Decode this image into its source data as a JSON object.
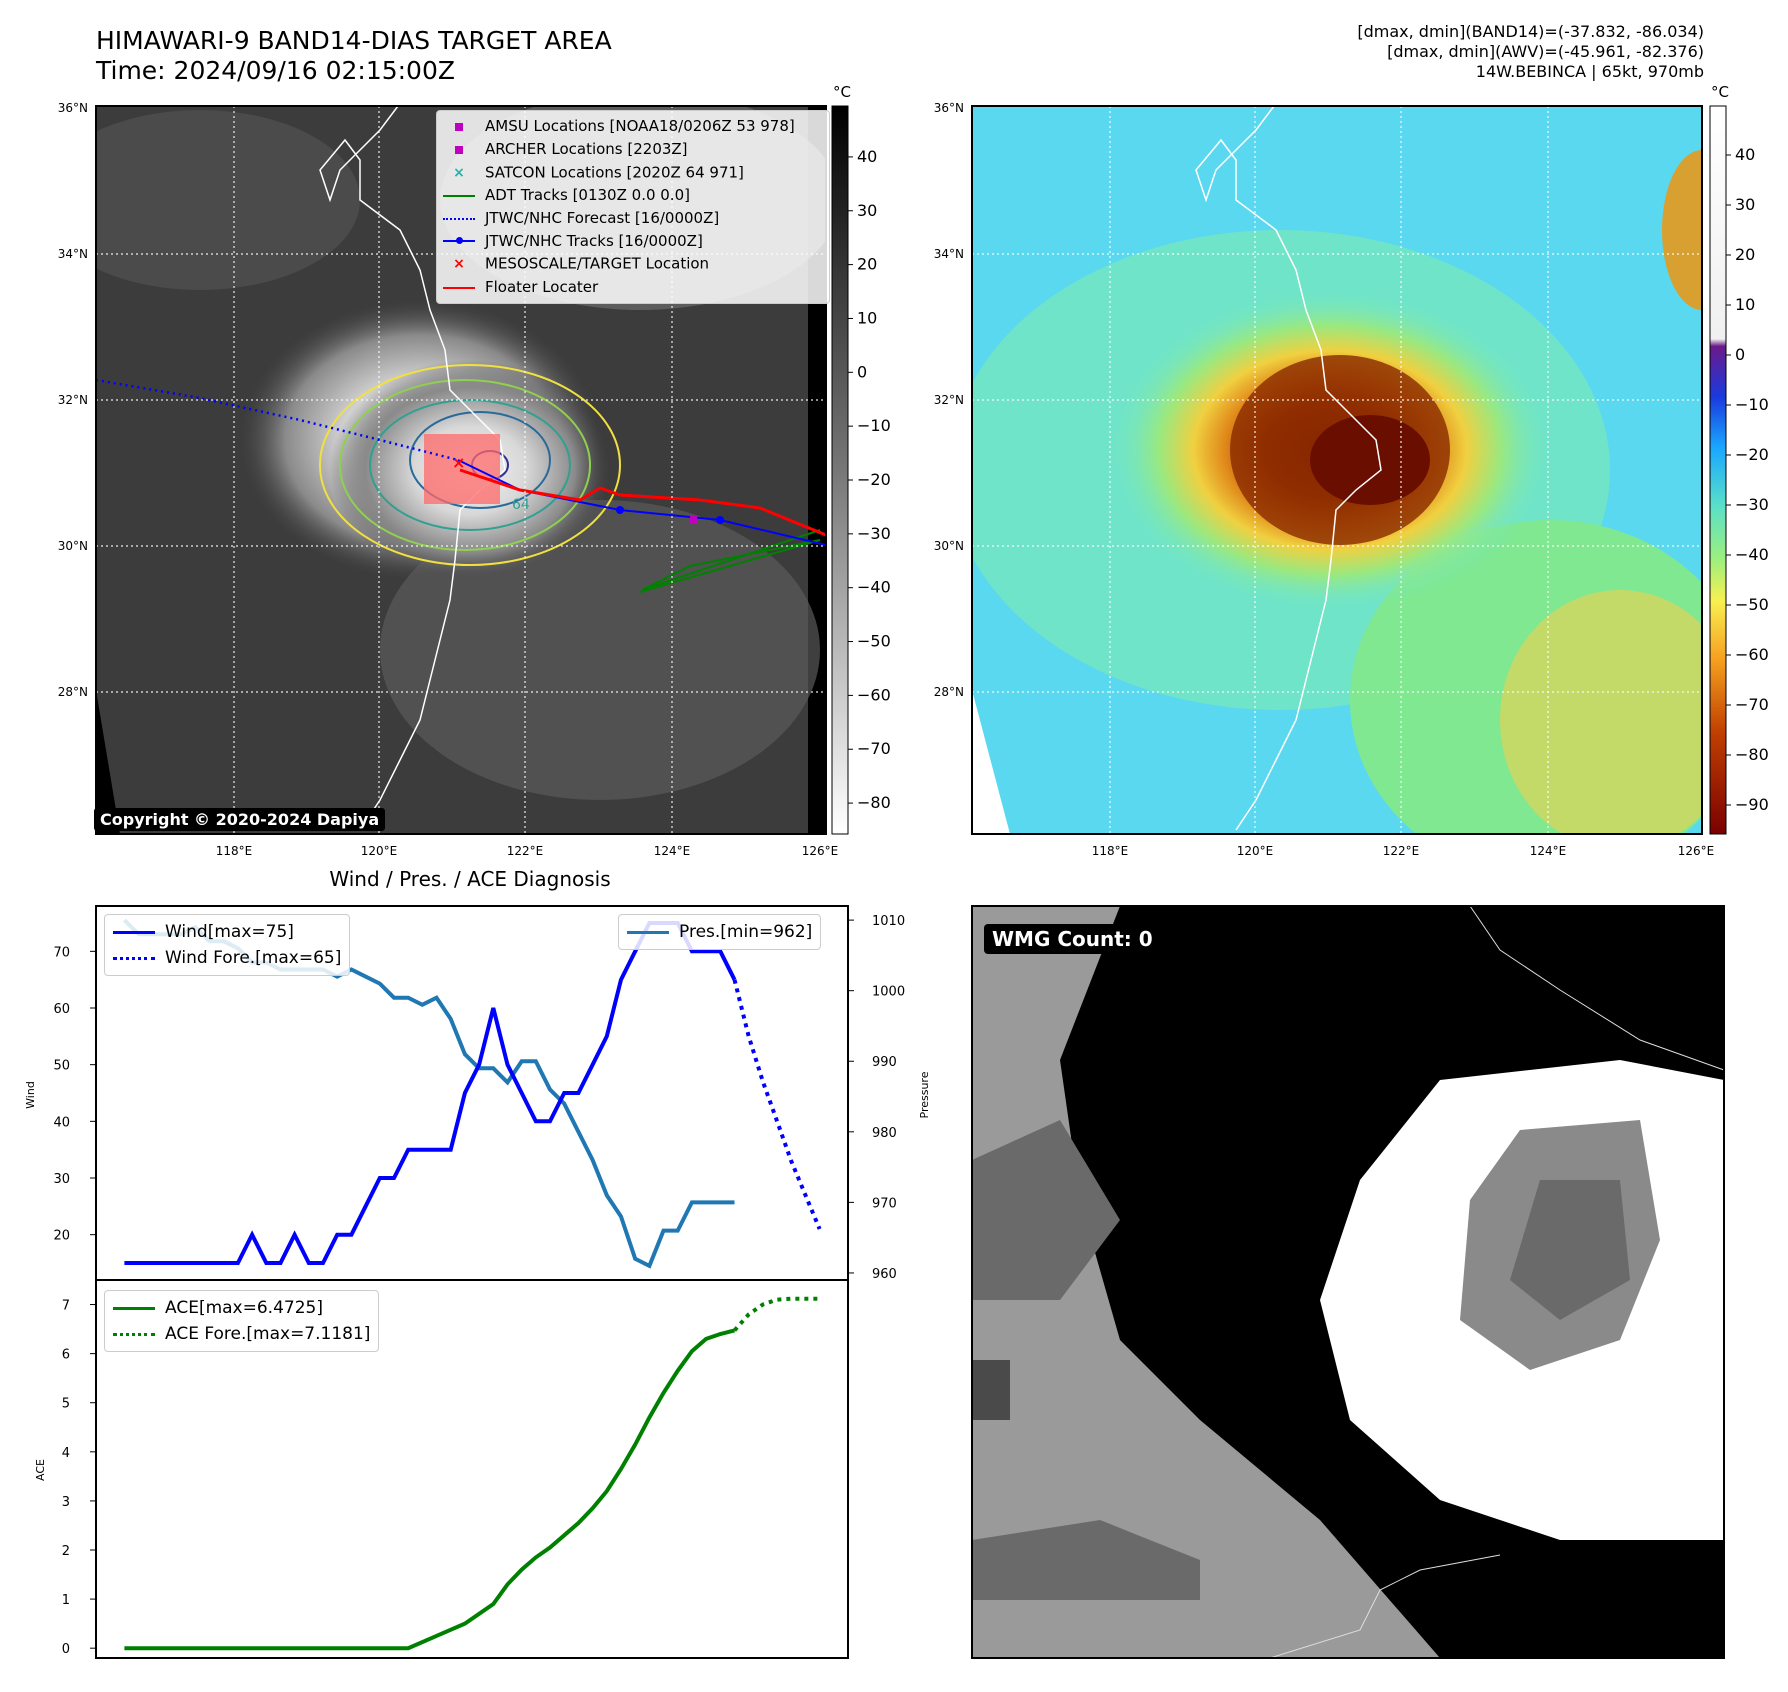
{
  "header": {
    "title_line1": "HIMAWARI-9 BAND14-DIAS TARGET AREA",
    "title_line2": "Time: 2024/09/16 02:15:00Z",
    "info_line1": "[dmax, dmin](BAND14)=(-37.832, -86.034)",
    "info_line2": "[dmax, dmin](AWV)=(-45.961, -82.376)",
    "info_line3": "14W.BEBINCA | 65kt, 970mb"
  },
  "map": {
    "lon_ticks": [
      "118°E",
      "120°E",
      "122°E",
      "124°E",
      "126°E"
    ],
    "lat_ticks": [
      "36°N",
      "34°N",
      "32°N",
      "30°N",
      "28°N"
    ],
    "copyright": "Copyright © 2020-2024 Dapiya",
    "contour_label": "64",
    "legend": [
      {
        "label": "AMSU Locations [NOAA18/0206Z 53 978]",
        "color": "#c000c0",
        "marker": "square"
      },
      {
        "label": "ARCHER Locations [2203Z]",
        "color": "#c000c0",
        "marker": "square"
      },
      {
        "label": "SATCON Locations [2020Z 64 971]",
        "color": "#20b2aa",
        "marker": "x"
      },
      {
        "label": "ADT Tracks [0130Z 0.0 0.0]",
        "color": "#008000",
        "marker": "line"
      },
      {
        "label": "JTWC/NHC Forecast [16/0000Z]",
        "color": "#0000ff",
        "marker": "dotted"
      },
      {
        "label": "JTWC/NHC Tracks [16/0000Z]",
        "color": "#0000ff",
        "marker": "line-dot"
      },
      {
        "label": "MESOSCALE/TARGET Location",
        "color": "#ff0000",
        "marker": "x"
      },
      {
        "label": "Floater Locater",
        "color": "#ff0000",
        "marker": "line"
      }
    ]
  },
  "colorbar_left": {
    "unit": "°C",
    "ticks": [
      "40",
      "30",
      "20",
      "10",
      "0",
      "−10",
      "−20",
      "−30",
      "−40",
      "−50",
      "−60",
      "−70",
      "−80"
    ]
  },
  "colorbar_right": {
    "unit": "°C",
    "ticks": [
      "40",
      "30",
      "20",
      "10",
      "0",
      "−10",
      "−20",
      "−30",
      "−40",
      "−50",
      "−60",
      "−70",
      "−80",
      "−90"
    ]
  },
  "wmg": {
    "label": "WMG Count: 0"
  },
  "chart_data": [
    {
      "type": "line",
      "title": "Wind / Pres. / ACE Diagnosis",
      "ylabel": "Wind",
      "ylabel_right": "Pressure",
      "ylim": [
        12,
        78
      ],
      "ylim_right": [
        959,
        1012
      ],
      "yticks": [
        20,
        30,
        40,
        50,
        60,
        70
      ],
      "yticks_right": [
        960,
        970,
        980,
        990,
        1000,
        1010
      ],
      "legend_left": [
        "Wind[max=75]",
        "Wind Fore.[max=65]"
      ],
      "legend_right": [
        "Pres.[min=962]"
      ],
      "series": [
        {
          "name": "Wind[max=75]",
          "axis": "left",
          "color": "#0000ff",
          "style": "solid",
          "x": [
            0,
            1,
            2,
            3,
            4,
            5,
            6,
            7,
            8,
            9,
            10,
            11,
            12,
            13,
            14,
            15,
            16,
            17,
            18,
            19,
            20,
            21,
            22,
            23,
            24,
            25,
            26,
            27,
            28,
            29,
            30,
            31,
            32,
            33,
            34,
            35,
            36,
            37,
            38,
            39,
            40,
            41,
            42,
            43
          ],
          "values": [
            15,
            15,
            15,
            15,
            15,
            15,
            15,
            15,
            15,
            20,
            15,
            15,
            20,
            15,
            15,
            20,
            20,
            25,
            30,
            30,
            35,
            35,
            35,
            35,
            45,
            50,
            60,
            50,
            45,
            40,
            40,
            45,
            45,
            50,
            55,
            65,
            70,
            75,
            75,
            75,
            70,
            70,
            70,
            65
          ]
        },
        {
          "name": "Wind Fore.[max=65]",
          "axis": "left",
          "color": "#0000ff",
          "style": "dotted",
          "x": [
            43,
            44,
            45,
            46,
            47,
            48,
            49
          ],
          "values": [
            65,
            55,
            47,
            40,
            33,
            27,
            21
          ]
        },
        {
          "name": "Pres.[min=962]",
          "axis": "right",
          "color": "#1f77b4",
          "style": "solid",
          "x": [
            0,
            1,
            2,
            3,
            4,
            5,
            6,
            7,
            8,
            9,
            10,
            11,
            12,
            13,
            14,
            15,
            16,
            17,
            18,
            19,
            20,
            21,
            22,
            23,
            24,
            25,
            26,
            27,
            28,
            29,
            30,
            31,
            32,
            33,
            34,
            35,
            36,
            37,
            38,
            39,
            40,
            41,
            42,
            43
          ],
          "values": [
            1010,
            1008,
            1008,
            1008,
            1008,
            1009,
            1007,
            1007,
            1006,
            1004,
            1004,
            1003,
            1003,
            1003,
            1003,
            1002,
            1003,
            1002,
            1001,
            999,
            999,
            998,
            999,
            996,
            991,
            989,
            989,
            987,
            990,
            990,
            986,
            984,
            980,
            976,
            971,
            968,
            962,
            961,
            966,
            966,
            970,
            970,
            970,
            970
          ]
        },
        {
          "name": "ACE[max=6.4725]",
          "axis": "ace",
          "color": "#008000",
          "style": "solid",
          "x": [
            0,
            20,
            22,
            24,
            26,
            27,
            28,
            29,
            30,
            31,
            32,
            33,
            34,
            35,
            36,
            37,
            38,
            39,
            40,
            41,
            42,
            43
          ],
          "values": [
            0,
            0,
            0.25,
            0.5,
            0.9,
            1.3,
            1.6,
            1.85,
            2.05,
            2.3,
            2.55,
            2.85,
            3.2,
            3.65,
            4.15,
            4.7,
            5.2,
            5.65,
            6.05,
            6.3,
            6.4,
            6.4725
          ]
        },
        {
          "name": "ACE Fore.[max=7.1181]",
          "axis": "ace",
          "color": "#008000",
          "style": "dotted",
          "x": [
            43,
            44,
            45,
            46,
            47,
            48,
            49
          ],
          "values": [
            6.4725,
            6.8,
            7.0,
            7.1,
            7.1181,
            7.1181,
            7.1181
          ]
        }
      ],
      "ace_ylabel": "ACE",
      "ace_ylim": [
        -0.2,
        7.5
      ],
      "ace_yticks": [
        0,
        1,
        2,
        3,
        4,
        5,
        6,
        7
      ],
      "ace_legend": [
        "ACE[max=6.4725]",
        "ACE Fore.[max=7.1181]"
      ]
    }
  ]
}
